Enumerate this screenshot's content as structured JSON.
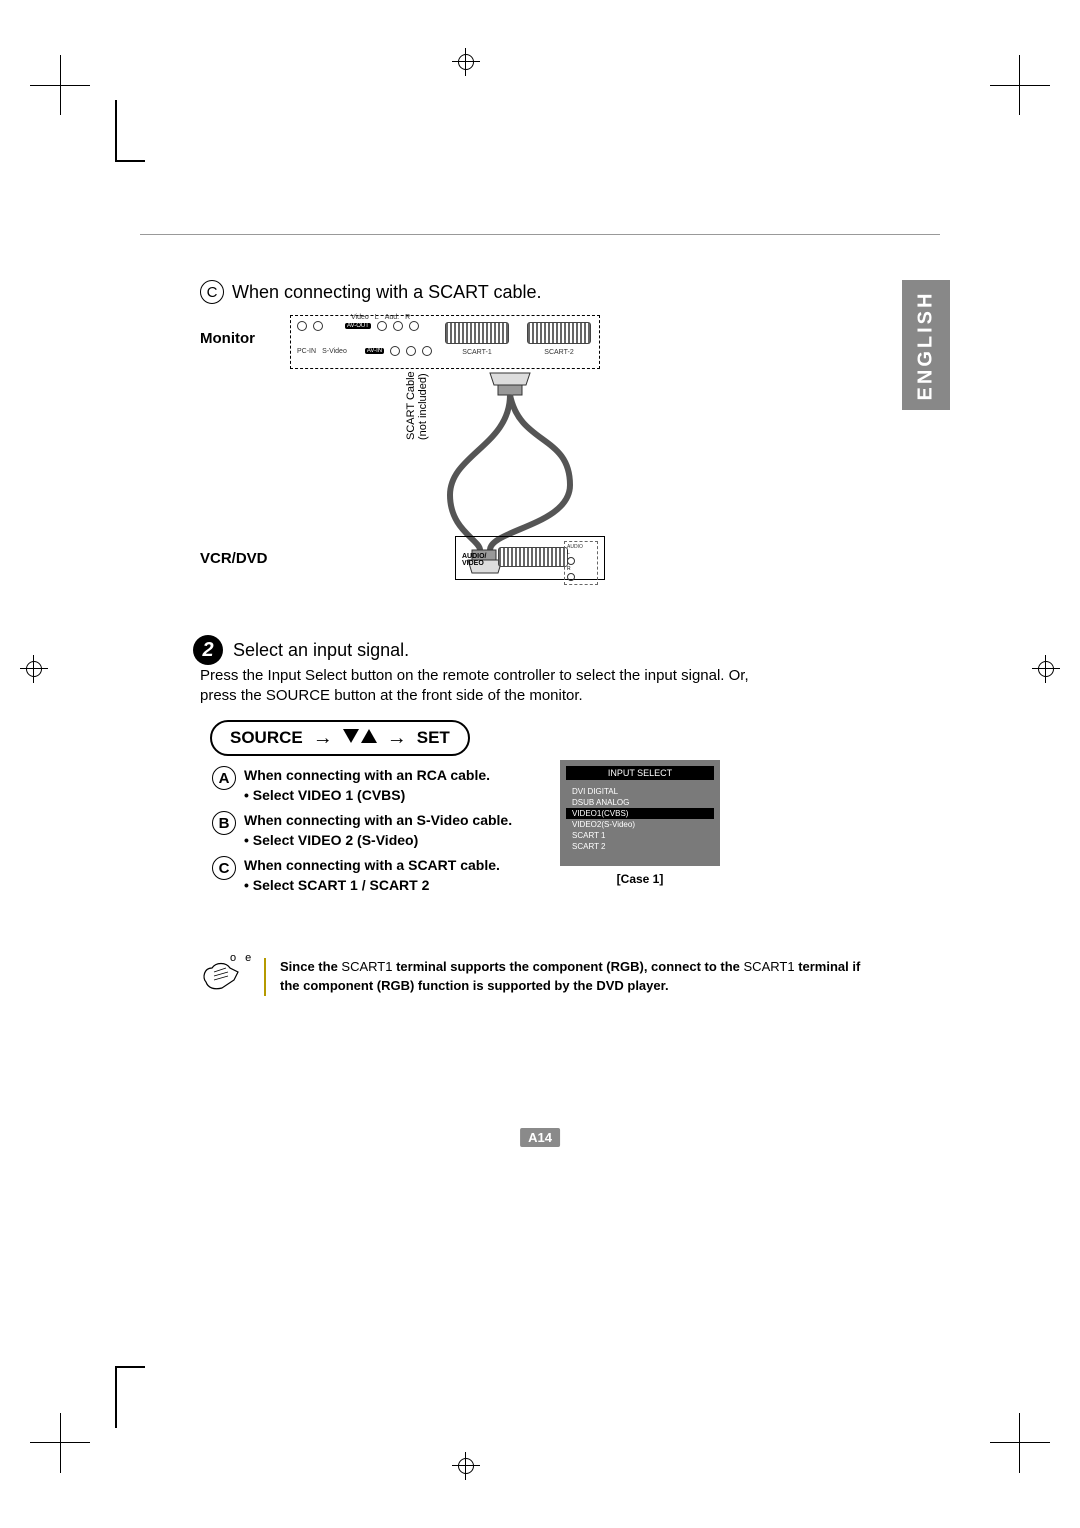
{
  "language_tab": "ENGLISH",
  "section_c": {
    "letter": "C",
    "text": "When connecting with a SCART cable."
  },
  "diagram": {
    "monitor_label": "Monitor",
    "vcr_label": "VCR/DVD",
    "cable_label": "SCART Cable\n(not included)",
    "panel": {
      "av_out": "AV-OUT",
      "av_in": "AV-IN",
      "video": "Video",
      "l": "L",
      "aud": "Aud.",
      "r": "R",
      "pc_in": "PC-IN",
      "svideo": "S-Video",
      "scart1": "SCART-1",
      "scart2": "SCART-2"
    },
    "vcr_box": {
      "audio_video": "AUDIO/\nVIDEO",
      "audio": "AUDIO",
      "l": "L",
      "r": "R"
    }
  },
  "step2": {
    "number": "2",
    "title": "Select an input signal.",
    "body": "Press the Input Select button on the remote controller to select the input signal. Or, press the SOURCE button at the front side of the monitor."
  },
  "source_pill": {
    "source": "SOURCE",
    "set": "SET"
  },
  "options": {
    "A": {
      "line1": "When connecting with an RCA cable.",
      "line2": "• Select VIDEO 1 (CVBS)"
    },
    "B": {
      "line1": "When connecting with an S-Video cable.",
      "line2": "• Select VIDEO 2 (S-Video)"
    },
    "C": {
      "line1": "When connecting with a SCART cable.",
      "line2": "• Select SCART 1 / SCART 2"
    }
  },
  "osd": {
    "title": "INPUT SELECT",
    "items": [
      "DVI DIGITAL",
      "DSUB ANALOG",
      "VIDEO1(CVBS)",
      "VIDEO2(S-Video)",
      "SCART 1",
      "SCART 2"
    ],
    "selected_index": 2,
    "caption": "[Case 1]"
  },
  "note": {
    "label": "o e",
    "prefix": "Since the",
    "kw1": "SCART1",
    "mid": " terminal supports the component (RGB), connect to the",
    "kw2": "SCART1",
    "suffix": " terminal if the component (RGB) function is supported by the DVD player."
  },
  "page_number": "A14",
  "colors": {
    "tab_bg": "#888888",
    "osd_bg": "#7a7a7a",
    "note_border": "#b59a00"
  }
}
